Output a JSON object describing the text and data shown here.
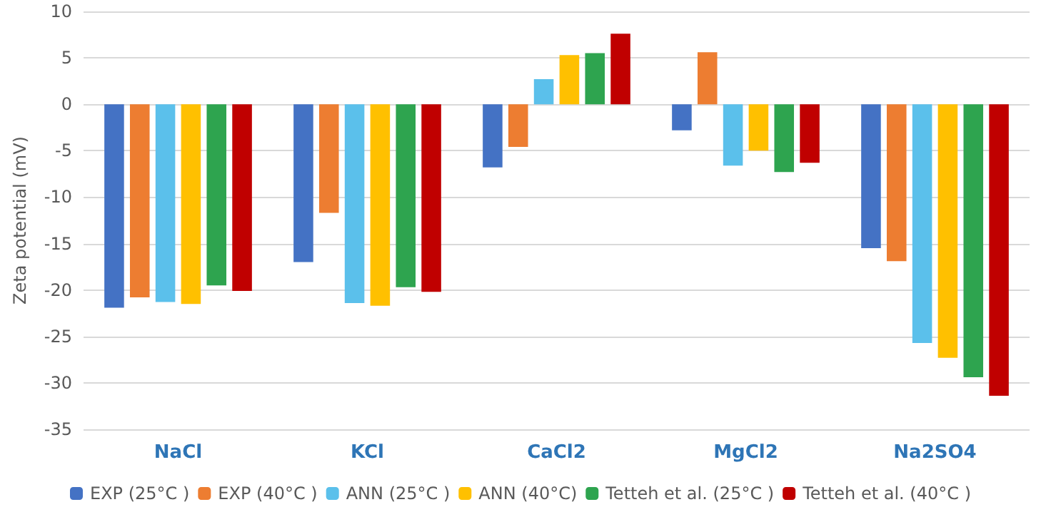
{
  "chart_data": {
    "type": "bar",
    "ylabel": "Zeta potential (mV)",
    "categories": [
      "NaCl",
      "KCl",
      "CaCl2",
      "MgCl2",
      "Na2SO4"
    ],
    "series": [
      {
        "name": "EXP (25°C )",
        "color": "#4472c4",
        "values": [
          -21.9,
          -17,
          -6.8,
          -2.8,
          -15.5
        ]
      },
      {
        "name": "EXP (40°C )",
        "color": "#ed7d31",
        "values": [
          -20.8,
          -11.7,
          -4.6,
          5.6,
          -16.9
        ]
      },
      {
        "name": "ANN (25°C )",
        "color": "#5bc0eb",
        "values": [
          -21.3,
          -21.4,
          2.7,
          -6.6,
          -25.7
        ]
      },
      {
        "name": "ANN (40°C)",
        "color": "#ffc000",
        "values": [
          -21.5,
          -21.7,
          5.3,
          -5,
          -27.3
        ]
      },
      {
        "name": "Tetteh et al. (25°C )",
        "color": "#2ea44f",
        "values": [
          -19.5,
          -19.7,
          5.5,
          -7.3,
          -29.4
        ]
      },
      {
        "name": "Tetteh et al. (40°C )",
        "color": "#c00000",
        "values": [
          -20.1,
          -20.2,
          7.6,
          -6.3,
          -31.4
        ]
      }
    ],
    "ylim": [
      -35,
      10
    ],
    "yticks": [
      -35,
      -30,
      -25,
      -20,
      -15,
      -10,
      -5,
      0,
      5,
      10
    ],
    "grid": "y",
    "legend": "bottom"
  }
}
